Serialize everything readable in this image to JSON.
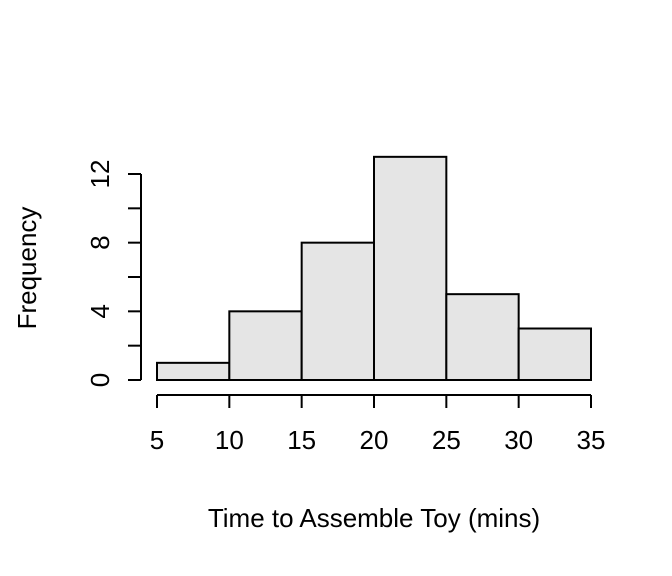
{
  "chart_data": {
    "type": "histogram",
    "xlabel": "Time to Assemble Toy (mins)",
    "ylabel": "Frequency",
    "bins": [
      {
        "from": 5,
        "to": 10,
        "count": 1
      },
      {
        "from": 10,
        "to": 15,
        "count": 4
      },
      {
        "from": 15,
        "to": 20,
        "count": 8
      },
      {
        "from": 20,
        "to": 25,
        "count": 13
      },
      {
        "from": 25,
        "to": 30,
        "count": 5
      },
      {
        "from": 30,
        "to": 35,
        "count": 3
      }
    ],
    "xticks": [
      5,
      10,
      15,
      20,
      25,
      30,
      35
    ],
    "yticks": [
      0,
      2,
      4,
      6,
      8,
      10,
      12
    ],
    "ytick_labels": [
      "0",
      "",
      "4",
      "",
      "8",
      "",
      "12"
    ],
    "xlim": [
      5,
      35
    ],
    "ylim": [
      0,
      13
    ],
    "bar_fill": "#e5e5e5",
    "bar_stroke": "#000000",
    "grid": false
  }
}
